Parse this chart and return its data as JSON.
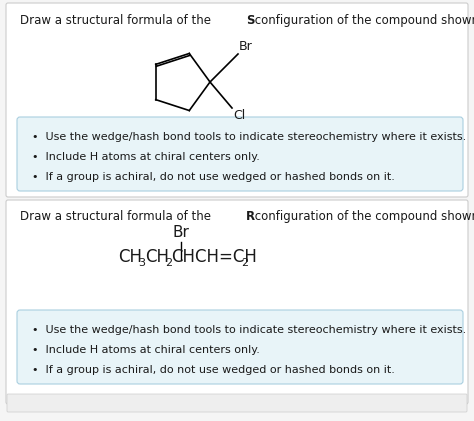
{
  "bg_color": "#f5f5f5",
  "white": "#ffffff",
  "text_color": "#1a1a1a",
  "bullet_box_color": "#e8f4f8",
  "bullet_border_color": "#aacfe0",
  "section1_q_plain1": "Draw a structural formula of the ",
  "section1_q_bold": "S",
  "section1_q_plain2": " configuration of the compound shown below.",
  "section2_q_plain1": "Draw a structural formula of the ",
  "section2_q_bold": "R",
  "section2_q_plain2": " configuration of the compound shown below.",
  "bullets": [
    "Use the wedge/hash bond tools to indicate stereochemistry where it exists.",
    "Include H atoms at chiral centers only.",
    "If a group is achiral, do not use wedged or hashed bonds on it."
  ],
  "fs_question": 8.5,
  "fs_bullet": 8.0,
  "fs_formula": 12,
  "fs_sub": 8,
  "fs_label": 9
}
